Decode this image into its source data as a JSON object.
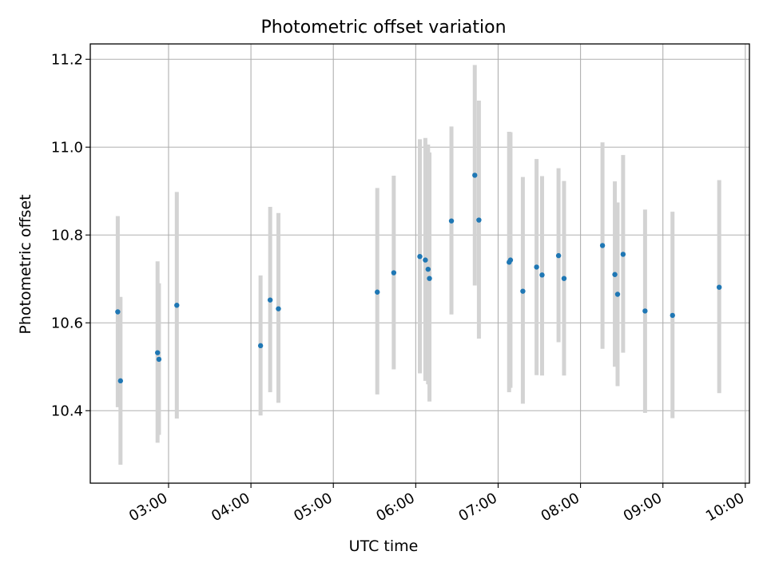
{
  "chart_data": {
    "type": "scatter",
    "title": "Photometric offset variation",
    "xlabel": "UTC time",
    "ylabel": "Photometric offset",
    "x_axis_kind": "time",
    "xlim": [
      "02:03",
      "10:03"
    ],
    "ylim": [
      10.235,
      11.235
    ],
    "x_ticks": [
      "03:00",
      "04:00",
      "05:00",
      "06:00",
      "07:00",
      "08:00",
      "09:00",
      "10:00"
    ],
    "y_ticks": [
      10.4,
      10.6,
      10.8,
      11.0,
      11.2
    ],
    "grid": true,
    "colors": {
      "point": "#1f77b4",
      "errorbar": "#d3d3d3",
      "grid": "#b0b0b0"
    },
    "points": [
      {
        "time": "02:23",
        "value": 10.625,
        "low": 10.408,
        "high": 10.843
      },
      {
        "time": "02:25",
        "value": 10.468,
        "low": 10.277,
        "high": 10.659
      },
      {
        "time": "02:52",
        "value": 10.532,
        "low": 10.327,
        "high": 10.74
      },
      {
        "time": "02:53",
        "value": 10.517,
        "low": 10.345,
        "high": 10.69
      },
      {
        "time": "03:06",
        "value": 10.64,
        "low": 10.382,
        "high": 10.898
      },
      {
        "time": "04:07",
        "value": 10.548,
        "low": 10.389,
        "high": 10.708
      },
      {
        "time": "04:14",
        "value": 10.652,
        "low": 10.442,
        "high": 10.864
      },
      {
        "time": "04:20",
        "value": 10.632,
        "low": 10.418,
        "high": 10.85
      },
      {
        "time": "05:32",
        "value": 10.67,
        "low": 10.437,
        "high": 10.907
      },
      {
        "time": "05:44",
        "value": 10.714,
        "low": 10.494,
        "high": 10.935
      },
      {
        "time": "06:03",
        "value": 10.751,
        "low": 10.485,
        "high": 11.018
      },
      {
        "time": "06:07",
        "value": 10.743,
        "low": 10.468,
        "high": 11.021
      },
      {
        "time": "06:09",
        "value": 10.722,
        "low": 10.46,
        "high": 11.006
      },
      {
        "time": "06:10",
        "value": 10.701,
        "low": 10.421,
        "high": 10.988
      },
      {
        "time": "06:26",
        "value": 10.832,
        "low": 10.619,
        "high": 11.047
      },
      {
        "time": "06:43",
        "value": 10.936,
        "low": 10.685,
        "high": 11.187
      },
      {
        "time": "06:46",
        "value": 10.834,
        "low": 10.564,
        "high": 11.106
      },
      {
        "time": "07:08",
        "value": 10.738,
        "low": 10.442,
        "high": 11.035
      },
      {
        "time": "07:09",
        "value": 10.743,
        "low": 10.452,
        "high": 11.034
      },
      {
        "time": "07:18",
        "value": 10.672,
        "low": 10.416,
        "high": 10.932
      },
      {
        "time": "07:28",
        "value": 10.727,
        "low": 10.481,
        "high": 10.973
      },
      {
        "time": "07:32",
        "value": 10.709,
        "low": 10.48,
        "high": 10.934
      },
      {
        "time": "07:44",
        "value": 10.753,
        "low": 10.556,
        "high": 10.952
      },
      {
        "time": "07:48",
        "value": 10.701,
        "low": 10.48,
        "high": 10.923
      },
      {
        "time": "08:16",
        "value": 10.776,
        "low": 10.541,
        "high": 11.011
      },
      {
        "time": "08:25",
        "value": 10.71,
        "low": 10.5,
        "high": 10.922
      },
      {
        "time": "08:27",
        "value": 10.665,
        "low": 10.456,
        "high": 10.874
      },
      {
        "time": "08:31",
        "value": 10.756,
        "low": 10.532,
        "high": 10.982
      },
      {
        "time": "08:47",
        "value": 10.627,
        "low": 10.395,
        "high": 10.858
      },
      {
        "time": "09:07",
        "value": 10.617,
        "low": 10.383,
        "high": 10.853
      },
      {
        "time": "09:41",
        "value": 10.681,
        "low": 10.44,
        "high": 10.925
      }
    ]
  }
}
